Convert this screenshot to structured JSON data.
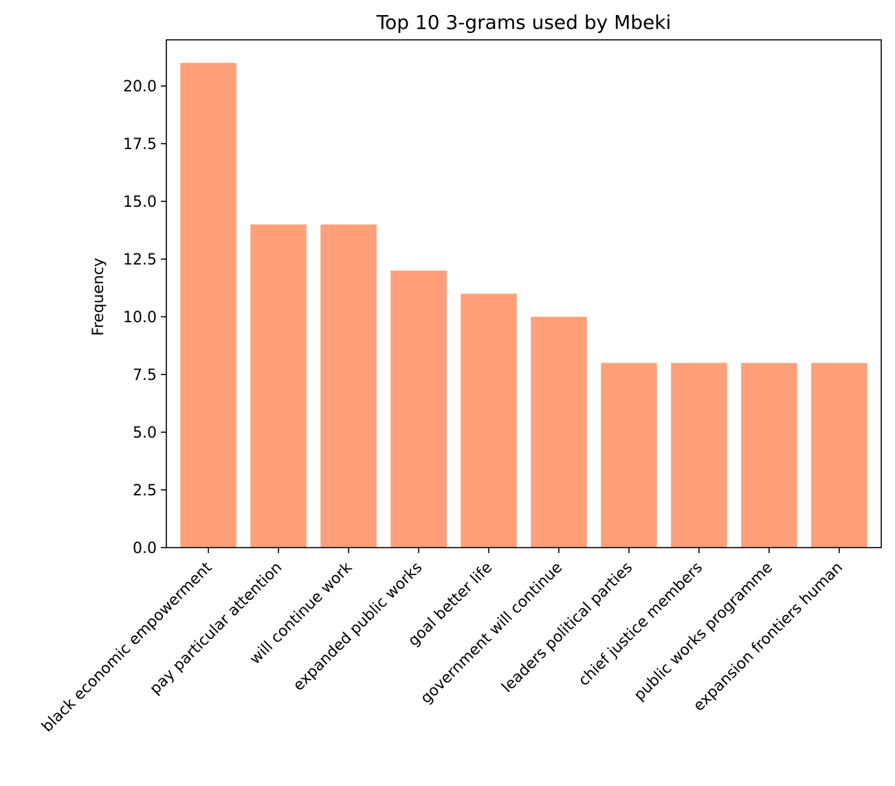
{
  "chart_data": {
    "type": "bar",
    "title": "Top 10 3-grams used by Mbeki",
    "xlabel": "",
    "ylabel": "Frequency",
    "categories": [
      "black economic empowerment",
      "pay particular attention",
      "will continue work",
      "expanded public works",
      "goal better life",
      "government will continue",
      "leaders political parties",
      "chief justice members",
      "public works programme",
      "expansion frontiers human"
    ],
    "values": [
      21,
      14,
      14,
      12,
      11,
      10,
      8,
      8,
      8,
      8
    ],
    "ylim": [
      0,
      22
    ],
    "yticks": [
      "0.0",
      "2.5",
      "5.0",
      "7.5",
      "10.0",
      "12.5",
      "15.0",
      "17.5",
      "20.0"
    ],
    "grid": false,
    "legend": "none",
    "bar_color": "#ffa07a"
  }
}
